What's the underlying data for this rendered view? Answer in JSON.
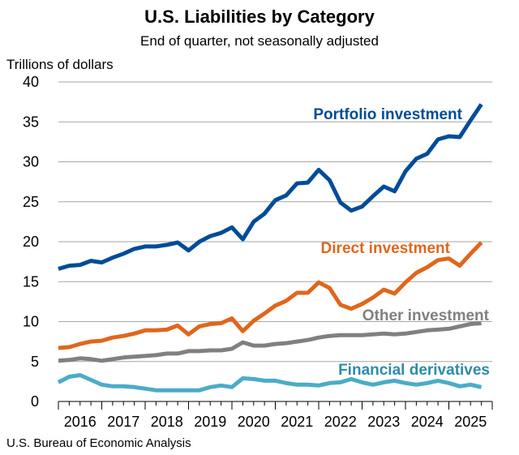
{
  "chart_data": {
    "type": "line",
    "title": "U.S. Liabilities by Category",
    "subtitle": "End of quarter, not seasonally adjusted",
    "ylabel": "Trillions of dollars",
    "xlabel": "",
    "ylim": [
      0,
      40
    ],
    "yticks": [
      0,
      5,
      10,
      15,
      20,
      25,
      30,
      35,
      40
    ],
    "xtick_labels": [
      "2016",
      "2017",
      "2018",
      "2019",
      "2020",
      "2021",
      "2022",
      "2023",
      "2024",
      "2025"
    ],
    "x": [
      "2016Q1",
      "2016Q2",
      "2016Q3",
      "2016Q4",
      "2017Q1",
      "2017Q2",
      "2017Q3",
      "2017Q4",
      "2018Q1",
      "2018Q2",
      "2018Q3",
      "2018Q4",
      "2019Q1",
      "2019Q2",
      "2019Q3",
      "2019Q4",
      "2020Q1",
      "2020Q2",
      "2020Q3",
      "2020Q4",
      "2021Q1",
      "2021Q2",
      "2021Q3",
      "2021Q4",
      "2022Q1",
      "2022Q2",
      "2022Q3",
      "2022Q4",
      "2023Q1",
      "2023Q2",
      "2023Q3",
      "2023Q4",
      "2024Q1",
      "2024Q2",
      "2024Q3",
      "2024Q4",
      "2025Q1",
      "2025Q2",
      "2025Q3",
      "2025Q4"
    ],
    "grid": "horizontal",
    "series": [
      {
        "name": "Portfolio investment",
        "color": "#004C97",
        "label_color": "#004C97",
        "values": [
          16.6,
          17.0,
          17.1,
          17.6,
          17.4,
          18.0,
          18.5,
          19.1,
          19.4,
          19.4,
          19.6,
          19.9,
          18.9,
          20.0,
          20.7,
          21.1,
          21.8,
          20.3,
          22.5,
          23.5,
          25.2,
          25.8,
          27.3,
          27.4,
          29.0,
          27.7,
          24.9,
          23.9,
          24.4,
          25.7,
          26.9,
          26.3,
          28.8,
          30.4,
          31.0,
          32.8,
          33.2,
          33.1,
          35.2,
          37.2
        ]
      },
      {
        "name": "Direct investment",
        "color": "#E0661C",
        "label_color": "#E0661C",
        "values": [
          6.7,
          6.8,
          7.2,
          7.5,
          7.6,
          8.0,
          8.2,
          8.5,
          8.9,
          8.9,
          9.0,
          9.5,
          8.4,
          9.4,
          9.7,
          9.8,
          10.4,
          8.8,
          10.1,
          11.0,
          12.0,
          12.6,
          13.6,
          13.6,
          14.9,
          14.2,
          12.1,
          11.6,
          12.2,
          13.0,
          14.0,
          13.5,
          14.9,
          16.1,
          16.8,
          17.7,
          17.9,
          17.0,
          18.5,
          19.9
        ]
      },
      {
        "name": "Other investment",
        "color": "#808080",
        "label_color": "#808080",
        "values": [
          5.1,
          5.2,
          5.4,
          5.3,
          5.1,
          5.3,
          5.5,
          5.6,
          5.7,
          5.8,
          6.0,
          6.0,
          6.3,
          6.3,
          6.4,
          6.4,
          6.6,
          7.4,
          7.0,
          7.0,
          7.2,
          7.3,
          7.5,
          7.7,
          8.0,
          8.2,
          8.3,
          8.3,
          8.3,
          8.4,
          8.5,
          8.4,
          8.5,
          8.7,
          8.9,
          9.0,
          9.1,
          9.4,
          9.7,
          9.8
        ]
      },
      {
        "name": "Financial derivatives",
        "color": "#4BACC6",
        "label_color": "#2E8CA8",
        "values": [
          2.4,
          3.1,
          3.3,
          2.7,
          2.1,
          1.9,
          1.9,
          1.8,
          1.6,
          1.4,
          1.4,
          1.4,
          1.4,
          1.4,
          1.8,
          2.0,
          1.8,
          2.9,
          2.8,
          2.6,
          2.6,
          2.3,
          2.1,
          2.1,
          2.0,
          2.3,
          2.4,
          2.8,
          2.4,
          2.1,
          2.4,
          2.6,
          2.3,
          2.1,
          2.3,
          2.6,
          2.3,
          1.9,
          2.1,
          1.8
        ]
      }
    ],
    "source": "U.S. Bureau of Economic Analysis"
  }
}
